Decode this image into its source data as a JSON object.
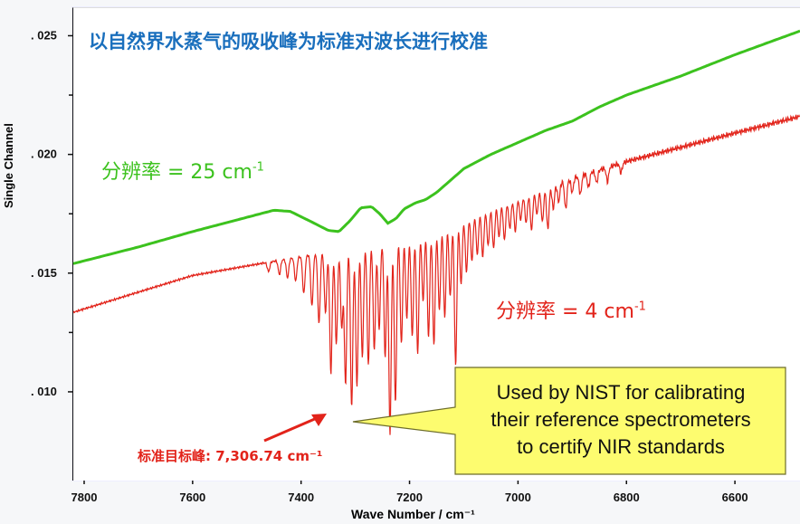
{
  "title": "以自然界水蒸气的吸收峰为标准对波长进行校准",
  "annotations": {
    "green_label_prefix": "分辨率 = 25 cm",
    "green_label_sup": "-1",
    "red_label_prefix": "分辨率 = 4 cm",
    "red_label_sup": "-1",
    "peak_label": "标准目标峰: 7,306.74 cm⁻¹",
    "callout_line1": "Used by NIST for calibrating",
    "callout_line2": "their reference spectrometers",
    "callout_line3": "to certify NIR standards"
  },
  "colors": {
    "green": "#3cc21e",
    "red": "#e2231a",
    "title": "#1a6fbd",
    "callout_fill": "#fdfc6f",
    "callout_stroke": "#6d6d2a"
  },
  "chart_data": {
    "type": "line",
    "title": "以自然界水蒸气的吸收峰为标准对波长进行校准",
    "xlabel": "Wave Number  / cm⁻¹",
    "ylabel": "Single Channel",
    "xlim": [
      7820,
      6480
    ],
    "ylim": [
      0.0063,
      0.0262
    ],
    "x_ticks": [
      7800,
      7600,
      7400,
      7200,
      7000,
      6800,
      6600
    ],
    "x_tick_labels": [
      "7800",
      "7600",
      "7400",
      "7200",
      "7000",
      "6800",
      "6600"
    ],
    "y_ticks": [
      0.01,
      0.015,
      0.02,
      0.025
    ],
    "y_tick_labels": [
      ". 010",
      ". 015",
      ". 020",
      ". 025"
    ],
    "series": [
      {
        "name": "分辨率 = 25 cm-1",
        "color": "#3cc21e",
        "x": [
          7820,
          7700,
          7600,
          7500,
          7450,
          7420,
          7380,
          7350,
          7330,
          7310,
          7290,
          7270,
          7255,
          7240,
          7225,
          7210,
          7190,
          7170,
          7150,
          7120,
          7100,
          7050,
          7000,
          6950,
          6900,
          6850,
          6800,
          6700,
          6600,
          6480
        ],
        "values": [
          0.0154,
          0.0161,
          0.01675,
          0.01735,
          0.01765,
          0.0176,
          0.01715,
          0.0168,
          0.01675,
          0.0172,
          0.01775,
          0.0178,
          0.0175,
          0.0171,
          0.0173,
          0.0177,
          0.01795,
          0.0181,
          0.0184,
          0.019,
          0.0194,
          0.02,
          0.0205,
          0.021,
          0.0214,
          0.022,
          0.0225,
          0.0233,
          0.0242,
          0.0252
        ]
      },
      {
        "name": "分辨率 = 4 cm-1",
        "color": "#e2231a",
        "x": [
          7820,
          7700,
          7600,
          7500,
          7450,
          7400,
          7350,
          7300,
          7250,
          7200,
          7150,
          7100,
          7050,
          7000,
          6950,
          6900,
          6850,
          6800,
          6700,
          6600,
          6480
        ],
        "values": [
          0.01335,
          0.0142,
          0.0149,
          0.0153,
          0.0155,
          0.0157,
          0.01595,
          0.0162,
          0.01645,
          0.0167,
          0.017,
          0.0174,
          0.0178,
          0.0182,
          0.0186,
          0.019,
          0.01935,
          0.0197,
          0.0203,
          0.0209,
          0.0216
        ],
        "absorption_peaks": [
          {
            "x": 7460,
            "depth": 0.0004
          },
          {
            "x": 7440,
            "depth": 0.0006
          },
          {
            "x": 7425,
            "depth": 0.0008
          },
          {
            "x": 7410,
            "depth": 0.001
          },
          {
            "x": 7395,
            "depth": 0.0016
          },
          {
            "x": 7380,
            "depth": 0.0022
          },
          {
            "x": 7367,
            "depth": 0.003
          },
          {
            "x": 7355,
            "depth": 0.0026
          },
          {
            "x": 7345,
            "depth": 0.0052
          },
          {
            "x": 7335,
            "depth": 0.004
          },
          {
            "x": 7325,
            "depth": 0.0034
          },
          {
            "x": 7318,
            "depth": 0.0058
          },
          {
            "x": 7306.74,
            "depth": 0.0068
          },
          {
            "x": 7297,
            "depth": 0.006
          },
          {
            "x": 7287,
            "depth": 0.0048
          },
          {
            "x": 7276,
            "depth": 0.0052
          },
          {
            "x": 7265,
            "depth": 0.0046
          },
          {
            "x": 7256,
            "depth": 0.0038
          },
          {
            "x": 7245,
            "depth": 0.005
          },
          {
            "x": 7236,
            "depth": 0.0083
          },
          {
            "x": 7226,
            "depth": 0.007
          },
          {
            "x": 7215,
            "depth": 0.0046
          },
          {
            "x": 7205,
            "depth": 0.0036
          },
          {
            "x": 7195,
            "depth": 0.0044
          },
          {
            "x": 7185,
            "depth": 0.0052
          },
          {
            "x": 7175,
            "depth": 0.003
          },
          {
            "x": 7165,
            "depth": 0.0046
          },
          {
            "x": 7155,
            "depth": 0.005
          },
          {
            "x": 7145,
            "depth": 0.0036
          },
          {
            "x": 7135,
            "depth": 0.004
          },
          {
            "x": 7125,
            "depth": 0.0032
          },
          {
            "x": 7115,
            "depth": 0.0062
          },
          {
            "x": 7105,
            "depth": 0.0028
          },
          {
            "x": 7095,
            "depth": 0.0024
          },
          {
            "x": 7085,
            "depth": 0.002
          },
          {
            "x": 7075,
            "depth": 0.0018
          },
          {
            "x": 7065,
            "depth": 0.002
          },
          {
            "x": 7055,
            "depth": 0.0016
          },
          {
            "x": 7045,
            "depth": 0.0018
          },
          {
            "x": 7035,
            "depth": 0.0014
          },
          {
            "x": 7025,
            "depth": 0.0016
          },
          {
            "x": 7015,
            "depth": 0.0012
          },
          {
            "x": 7005,
            "depth": 0.0014
          },
          {
            "x": 6995,
            "depth": 0.001
          },
          {
            "x": 6985,
            "depth": 0.0012
          },
          {
            "x": 6975,
            "depth": 0.0016
          },
          {
            "x": 6965,
            "depth": 0.001
          },
          {
            "x": 6955,
            "depth": 0.0014
          },
          {
            "x": 6945,
            "depth": 0.0018
          },
          {
            "x": 6935,
            "depth": 0.001
          },
          {
            "x": 6925,
            "depth": 0.0008
          },
          {
            "x": 6912,
            "depth": 0.0012
          },
          {
            "x": 6900,
            "depth": 0.0006
          },
          {
            "x": 6885,
            "depth": 0.0008
          },
          {
            "x": 6870,
            "depth": 0.0006
          },
          {
            "x": 6855,
            "depth": 0.0005
          },
          {
            "x": 6835,
            "depth": 0.0006
          },
          {
            "x": 6810,
            "depth": 0.0004
          }
        ]
      }
    ],
    "annotations": [
      {
        "text": "标准目标峰: 7,306.74 cm⁻¹",
        "target_x": 7306.74
      }
    ]
  }
}
